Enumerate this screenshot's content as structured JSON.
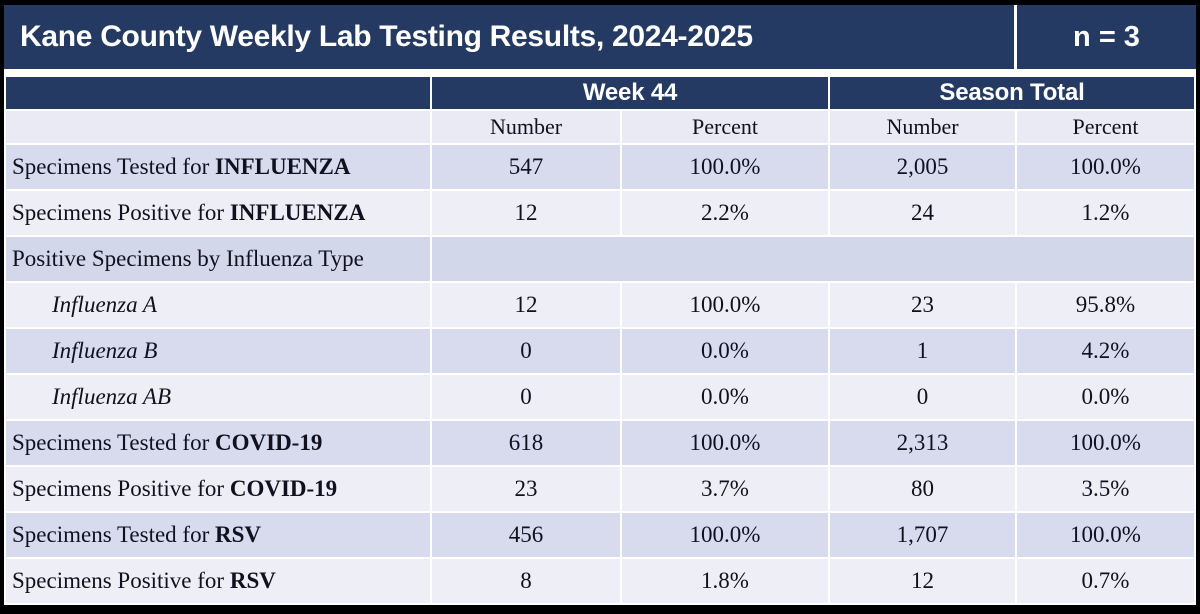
{
  "title": {
    "text": "Kane County Weekly Lab Testing Results, 2024-2025",
    "n_label": "n = 3"
  },
  "table": {
    "group_headers": {
      "week": "Week 44",
      "season": "Season Total"
    },
    "sub_headers": [
      "Number",
      "Percent",
      "Number",
      "Percent"
    ],
    "rows": [
      {
        "label": "Specimens Tested for ",
        "label_bold": "INFLUENZA",
        "style": "normal",
        "shade": "dark",
        "values": [
          "547",
          "100.0%",
          "2,005",
          "100.0%"
        ]
      },
      {
        "label": "Specimens Positive for ",
        "label_bold": "INFLUENZA",
        "style": "normal",
        "shade": "light",
        "values": [
          "12",
          "2.2%",
          "24",
          "1.2%"
        ]
      },
      {
        "label": "Positive Specimens by Influenza Type",
        "label_bold": "",
        "style": "normal",
        "shade": "band",
        "values": []
      },
      {
        "label": "Influenza A",
        "label_bold": "",
        "style": "indent-italic",
        "shade": "light",
        "values": [
          "12",
          "100.0%",
          "23",
          "95.8%"
        ]
      },
      {
        "label": "Influenza B",
        "label_bold": "",
        "style": "indent-italic",
        "shade": "dark",
        "values": [
          "0",
          "0.0%",
          "1",
          "4.2%"
        ]
      },
      {
        "label": "Influenza AB",
        "label_bold": "",
        "style": "indent-italic",
        "shade": "light",
        "values": [
          "0",
          "0.0%",
          "0",
          "0.0%"
        ]
      },
      {
        "label": "Specimens Tested for ",
        "label_bold": "COVID-19",
        "style": "normal",
        "shade": "dark",
        "values": [
          "618",
          "100.0%",
          "2,313",
          "100.0%"
        ]
      },
      {
        "label": "Specimens Positive for ",
        "label_bold": "COVID-19",
        "style": "normal",
        "shade": "light",
        "values": [
          "23",
          "3.7%",
          "80",
          "3.5%"
        ]
      },
      {
        "label": "Specimens Tested for ",
        "label_bold": "RSV",
        "style": "normal",
        "shade": "dark",
        "values": [
          "456",
          "100.0%",
          "1,707",
          "100.0%"
        ]
      },
      {
        "label": "Specimens Positive for ",
        "label_bold": "RSV",
        "style": "normal",
        "shade": "light",
        "values": [
          "8",
          "1.8%",
          "12",
          "0.7%"
        ]
      }
    ]
  },
  "colors": {
    "navy": "#243A62",
    "frame": "#000000",
    "grid": "#FFFFFF",
    "row_dark": "#D7DBED",
    "row_light": "#EDEEF6",
    "row_band": "#D2D8E9",
    "subheader_bg": "#E9EAF4",
    "title_text": "#FFFFFF",
    "body_text": "#10101F"
  }
}
